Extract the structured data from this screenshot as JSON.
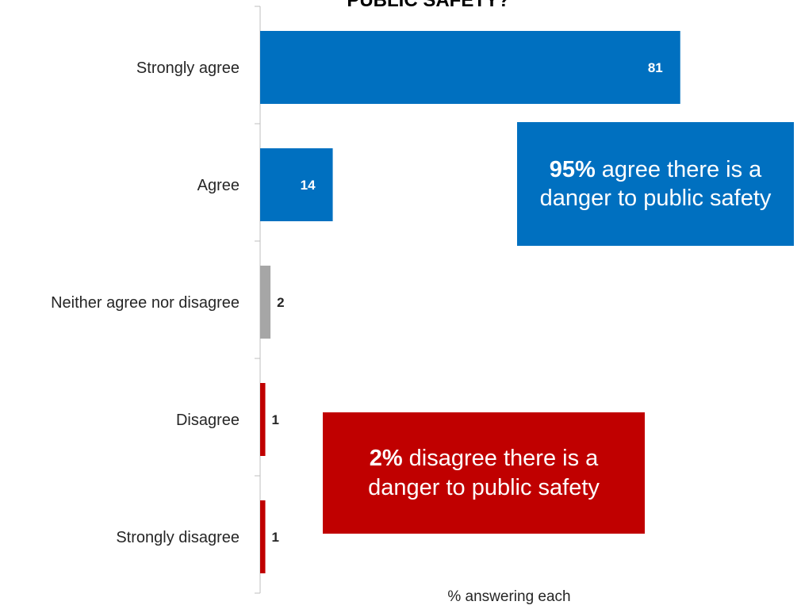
{
  "chart_data": {
    "type": "bar",
    "orientation": "horizontal",
    "title": "PUBLIC SAFETY?",
    "xlabel": "% answering each",
    "ylabel": "",
    "xlim": [
      0,
      100
    ],
    "grid": false,
    "categories": [
      "Strongly agree",
      "Agree",
      "Neither agree nor disagree",
      "Disagree",
      "Strongly disagree"
    ],
    "values": [
      81,
      14,
      2,
      1,
      1
    ],
    "bar_colors": [
      "#0070C0",
      "#0070C0",
      "#A6A6A6",
      "#C00000",
      "#C00000"
    ],
    "label_colors": [
      "#ffffff",
      "#ffffff",
      "#262626",
      "#262626",
      "#262626"
    ]
  },
  "callouts": {
    "agree": {
      "bold": "95%",
      "text": " agree there is a danger to public safety",
      "color": "#0070C0"
    },
    "disagree": {
      "bold": "2%",
      "text": " disagree there is a danger to public safety",
      "color": "#C00000"
    }
  }
}
